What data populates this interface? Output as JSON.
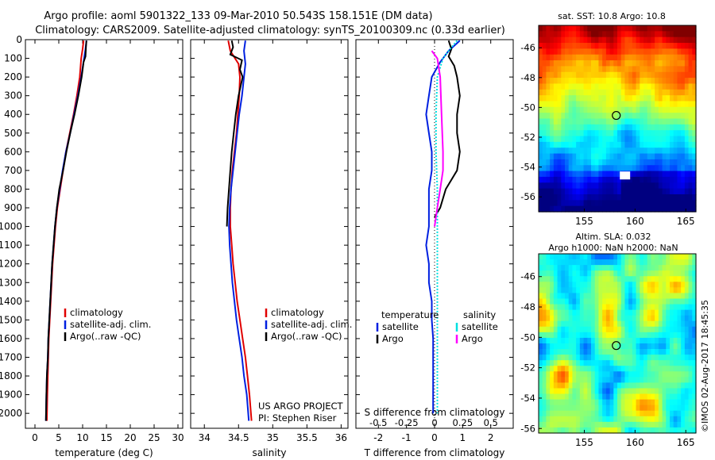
{
  "title_line1": "Argo profile: aoml 5901322_133 09-Mar-2010 50.543S 158.151E (DM data)",
  "title_line2": "Climatology: CARS2009. Satellite-adjusted climatology: synTS_20100309.nc (0.33d earlier)",
  "project_line1": "US ARGO PROJECT",
  "project_line2": "PI: Stephen Riser",
  "side_stamp": "©IMOS 02-Aug-2017 18:45:35",
  "colors": {
    "climatology": "#e00000",
    "satellite": "#0020e0",
    "argo": "#000000",
    "argo_sal": "#ff00ff",
    "sat_sal": "#00e0e0"
  },
  "chart_data": [
    {
      "type": "line",
      "id": "temperature",
      "xlabel": "temperature (deg C)",
      "ylabel": "",
      "xlim": [
        -2,
        31
      ],
      "ylim": [
        2080,
        0
      ],
      "xticks": [
        "0",
        "5",
        "10",
        "15",
        "20",
        "25",
        "30"
      ],
      "xtick_values": [
        0,
        5,
        10,
        15,
        20,
        25,
        30
      ],
      "yticks": [
        "0",
        "100",
        "200",
        "300",
        "400",
        "500",
        "600",
        "700",
        "800",
        "900",
        "1000",
        "1100",
        "1200",
        "1300",
        "1400",
        "1500",
        "1600",
        "1700",
        "1800",
        "1900",
        "2000"
      ],
      "ytick_values": [
        0,
        100,
        200,
        300,
        400,
        500,
        600,
        700,
        800,
        900,
        1000,
        1100,
        1200,
        1300,
        1400,
        1500,
        1600,
        1700,
        1800,
        1900,
        2000
      ],
      "legend": [
        "climatology",
        "satellite-adj. clim.",
        "Argo(..raw -QC)"
      ],
      "series": [
        {
          "name": "climatology",
          "color": "climatology",
          "points": [
            [
              10.2,
              5
            ],
            [
              10.0,
              50
            ],
            [
              9.7,
              100
            ],
            [
              9.4,
              200
            ],
            [
              8.8,
              300
            ],
            [
              8.1,
              400
            ],
            [
              7.3,
              500
            ],
            [
              6.5,
              600
            ],
            [
              5.9,
              700
            ],
            [
              5.3,
              800
            ],
            [
              4.7,
              900
            ],
            [
              4.3,
              1000
            ],
            [
              4.0,
              1100
            ],
            [
              3.7,
              1200
            ],
            [
              3.5,
              1300
            ],
            [
              3.3,
              1400
            ],
            [
              3.1,
              1500
            ],
            [
              2.9,
              1600
            ],
            [
              2.8,
              1700
            ],
            [
              2.7,
              1800
            ],
            [
              2.6,
              1900
            ],
            [
              2.5,
              2040
            ]
          ]
        },
        {
          "name": "satellite-adj. clim.",
          "color": "satellite",
          "points": [
            [
              10.8,
              5
            ],
            [
              10.6,
              50
            ],
            [
              10.3,
              100
            ],
            [
              9.7,
              200
            ],
            [
              9.0,
              300
            ],
            [
              8.2,
              400
            ],
            [
              7.4,
              500
            ],
            [
              6.5,
              600
            ],
            [
              5.8,
              700
            ],
            [
              5.2,
              800
            ],
            [
              4.6,
              900
            ],
            [
              4.2,
              1000
            ],
            [
              3.9,
              1100
            ],
            [
              3.6,
              1200
            ],
            [
              3.4,
              1300
            ],
            [
              3.2,
              1400
            ],
            [
              3.0,
              1500
            ],
            [
              2.8,
              1600
            ],
            [
              2.7,
              1700
            ],
            [
              2.5,
              1800
            ],
            [
              2.4,
              1900
            ],
            [
              2.3,
              2040
            ]
          ]
        },
        {
          "name": "Argo(..raw -QC)",
          "color": "argo",
          "points": [
            [
              10.8,
              5
            ],
            [
              10.7,
              40
            ],
            [
              10.6,
              90
            ],
            [
              10.2,
              120
            ],
            [
              9.8,
              200
            ],
            [
              9.1,
              300
            ],
            [
              8.3,
              400
            ],
            [
              7.4,
              500
            ],
            [
              6.6,
              600
            ],
            [
              5.9,
              700
            ],
            [
              5.1,
              800
            ],
            [
              4.6,
              900
            ],
            [
              4.2,
              1000
            ],
            [
              3.9,
              1100
            ],
            [
              3.6,
              1200
            ],
            [
              3.4,
              1300
            ],
            [
              3.2,
              1400
            ],
            [
              3.0,
              1500
            ],
            [
              2.8,
              1600
            ],
            [
              2.7,
              1700
            ],
            [
              2.5,
              1800
            ],
            [
              2.4,
              1900
            ],
            [
              2.3,
              2040
            ]
          ]
        }
      ]
    },
    {
      "type": "line",
      "id": "salinity",
      "xlabel": "salinity",
      "ylabel": "",
      "xlim": [
        33.8,
        36.1
      ],
      "ylim": [
        2080,
        0
      ],
      "xticks": [
        "34",
        "34.5",
        "35",
        "35.5",
        "36"
      ],
      "xtick_values": [
        34,
        34.5,
        35,
        35.5,
        36
      ],
      "legend": [
        "climatology",
        "satellite-adj. clim.",
        "Argo(..raw -QC)"
      ],
      "series": [
        {
          "name": "climatology",
          "color": "climatology",
          "points": [
            [
              34.35,
              5
            ],
            [
              34.38,
              60
            ],
            [
              34.5,
              130
            ],
            [
              34.52,
              200
            ],
            [
              34.51,
              300
            ],
            [
              34.49,
              400
            ],
            [
              34.47,
              500
            ],
            [
              34.44,
              600
            ],
            [
              34.41,
              700
            ],
            [
              34.39,
              800
            ],
            [
              34.38,
              900
            ],
            [
              34.38,
              1000
            ],
            [
              34.4,
              1100
            ],
            [
              34.42,
              1200
            ],
            [
              34.45,
              1300
            ],
            [
              34.48,
              1400
            ],
            [
              34.52,
              1500
            ],
            [
              34.56,
              1600
            ],
            [
              34.6,
              1700
            ],
            [
              34.63,
              1800
            ],
            [
              34.66,
              1900
            ],
            [
              34.69,
              2040
            ]
          ]
        },
        {
          "name": "satellite-adj. clim.",
          "color": "satellite",
          "points": [
            [
              34.6,
              5
            ],
            [
              34.58,
              60
            ],
            [
              34.6,
              130
            ],
            [
              34.58,
              200
            ],
            [
              34.55,
              300
            ],
            [
              34.51,
              400
            ],
            [
              34.48,
              500
            ],
            [
              34.45,
              600
            ],
            [
              34.42,
              700
            ],
            [
              34.39,
              800
            ],
            [
              34.37,
              900
            ],
            [
              34.36,
              1000
            ],
            [
              34.37,
              1100
            ],
            [
              34.39,
              1200
            ],
            [
              34.41,
              1300
            ],
            [
              34.44,
              1400
            ],
            [
              34.47,
              1500
            ],
            [
              34.51,
              1600
            ],
            [
              34.55,
              1700
            ],
            [
              34.58,
              1800
            ],
            [
              34.62,
              1900
            ],
            [
              34.65,
              2040
            ]
          ]
        },
        {
          "name": "Argo(..raw -QC)",
          "color": "argo",
          "points": [
            [
              34.4,
              5
            ],
            [
              34.42,
              40
            ],
            [
              34.38,
              80
            ],
            [
              34.55,
              110
            ],
            [
              34.52,
              160
            ],
            [
              34.56,
              200
            ],
            [
              34.5,
              300
            ],
            [
              34.46,
              400
            ],
            [
              34.43,
              500
            ],
            [
              34.4,
              600
            ],
            [
              34.38,
              700
            ],
            [
              34.36,
              800
            ],
            [
              34.34,
              900
            ],
            [
              34.33,
              1000
            ]
          ]
        }
      ]
    },
    {
      "type": "line",
      "id": "difference",
      "xlabel": "T difference from climatology",
      "xlabel2": "S difference from climatology",
      "xlim": [
        -2.8,
        2.8
      ],
      "ylim": [
        2080,
        0
      ],
      "xticks": [
        "-2",
        "-1",
        "0",
        "1",
        "2"
      ],
      "xtick_values": [
        -2,
        -1,
        0,
        1,
        2
      ],
      "xticks2": [
        "-0.5",
        "-0.25",
        "0",
        "0.25",
        "0.5"
      ],
      "legend_titles": [
        "temperature",
        "salinity"
      ],
      "legend": [
        "satellite",
        "Argo",
        "satellite",
        "Argo"
      ],
      "series": [
        {
          "name": "satellite",
          "color": "satellite",
          "points": [
            [
              0.9,
              5
            ],
            [
              0.5,
              60
            ],
            [
              0.2,
              120
            ],
            [
              -0.1,
              200
            ],
            [
              -0.2,
              300
            ],
            [
              -0.3,
              400
            ],
            [
              -0.2,
              500
            ],
            [
              -0.1,
              600
            ],
            [
              -0.1,
              700
            ],
            [
              -0.2,
              800
            ],
            [
              -0.2,
              900
            ],
            [
              -0.2,
              1000
            ],
            [
              -0.3,
              1100
            ],
            [
              -0.2,
              1200
            ],
            [
              -0.2,
              1300
            ],
            [
              -0.1,
              1400
            ],
            [
              -0.1,
              1500
            ],
            [
              -0.05,
              1600
            ],
            [
              -0.05,
              1700
            ],
            [
              -0.05,
              1800
            ],
            [
              -0.05,
              1900
            ],
            [
              -0.05,
              2000
            ]
          ]
        },
        {
          "name": "Argo",
          "color": "argo",
          "points": [
            [
              0.5,
              5
            ],
            [
              0.6,
              50
            ],
            [
              0.5,
              90
            ],
            [
              0.7,
              140
            ],
            [
              0.8,
              200
            ],
            [
              0.9,
              300
            ],
            [
              0.8,
              400
            ],
            [
              0.8,
              500
            ],
            [
              0.9,
              600
            ],
            [
              0.8,
              700
            ],
            [
              0.4,
              800
            ],
            [
              0.2,
              900
            ],
            [
              0.0,
              950
            ]
          ]
        },
        {
          "name": "satellite",
          "color": "sat_sal",
          "points": [
            [
              0.8,
              5
            ],
            [
              0.5,
              60
            ],
            [
              0.3,
              100
            ],
            [
              0.1,
              200
            ],
            [
              0.05,
              400
            ],
            [
              0.05,
              600
            ],
            [
              0.1,
              800
            ],
            [
              0.1,
              1000
            ],
            [
              0.1,
              1200
            ],
            [
              0.1,
              1400
            ],
            [
              0.1,
              1600
            ],
            [
              0.1,
              1800
            ],
            [
              0.1,
              2000
            ]
          ]
        },
        {
          "name": "Argo",
          "color": "argo_sal",
          "points": [
            [
              -0.1,
              60
            ],
            [
              0.1,
              100
            ],
            [
              0.2,
              200
            ],
            [
              0.25,
              400
            ],
            [
              0.3,
              600
            ],
            [
              0.3,
              700
            ],
            [
              0.2,
              800
            ],
            [
              0.1,
              900
            ],
            [
              0.0,
              1000
            ]
          ]
        }
      ]
    },
    {
      "type": "heatmap",
      "id": "sst_map",
      "title": "sat. SST: 10.8 Argo: 10.8",
      "xlim": [
        150.5,
        166
      ],
      "ylim": [
        -57,
        -44.5
      ],
      "xticks": [
        "155",
        "160",
        "165"
      ],
      "xtick_values": [
        155,
        160,
        165
      ],
      "yticks": [
        "-46",
        "-48",
        "-50",
        "-52",
        "-54",
        "-56"
      ],
      "ytick_values": [
        -46,
        -48,
        -50,
        -52,
        -54,
        -56
      ],
      "marker": [
        158.15,
        -50.54
      ]
    },
    {
      "type": "heatmap",
      "id": "sla_map",
      "title": "Altim. SLA: 0.032",
      "subtitle": "Argo h1000: NaN h2000: NaN",
      "xlim": [
        150.5,
        166
      ],
      "ylim": [
        -56.3,
        -44.5
      ],
      "xticks": [
        "155",
        "160",
        "165"
      ],
      "xtick_values": [
        155,
        160,
        165
      ],
      "yticks": [
        "-46",
        "-48",
        "-50",
        "-52",
        "-54",
        "-56"
      ],
      "ytick_values": [
        -46,
        -48,
        -50,
        -52,
        -54,
        -56
      ],
      "marker": [
        158.15,
        -50.54
      ]
    }
  ]
}
